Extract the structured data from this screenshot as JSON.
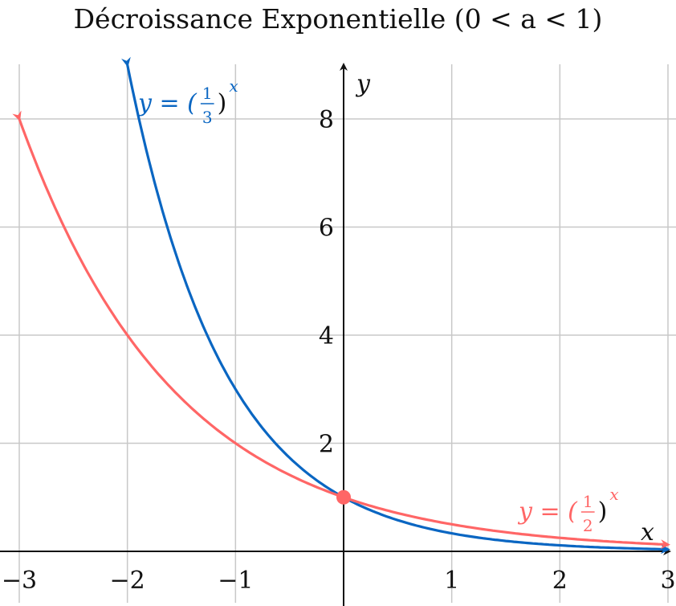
{
  "chart_data": {
    "type": "line",
    "title": "Décroissance Exponentielle (0 < a < 1)",
    "xlabel": "x",
    "ylabel": "y",
    "xlim": [
      -3,
      3
    ],
    "ylim": [
      0,
      9
    ],
    "grid": true,
    "x_ticks": [
      "−3",
      "−2",
      "−1",
      "1",
      "2",
      "3"
    ],
    "x_tick_values": [
      -3,
      -2,
      -1,
      1,
      2,
      3
    ],
    "y_ticks": [
      "2",
      "4",
      "6",
      "8"
    ],
    "y_tick_values": [
      2,
      4,
      6,
      8
    ],
    "series": [
      {
        "name": "y = (1/3)^x",
        "label_main": "y = (",
        "label_num": "1",
        "label_den": "3",
        "label_close": ")",
        "label_exp": "x",
        "base": 0.3333333,
        "domain": [
          -2,
          3
        ],
        "color": "#0a66c2"
      },
      {
        "name": "y = (1/2)^x",
        "label_main": "y = (",
        "label_num": "1",
        "label_den": "2",
        "label_close": ")",
        "label_exp": "x",
        "base": 0.5,
        "domain": [
          -3,
          3
        ],
        "color": "#ff6666"
      }
    ],
    "highlight_point": {
      "x": 0,
      "y": 1,
      "color": "#ff6666"
    }
  }
}
